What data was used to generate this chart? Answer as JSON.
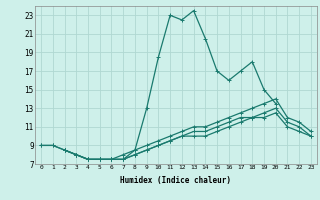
{
  "xlabel": "Humidex (Indice chaleur)",
  "ylabel": "",
  "xlim": [
    -0.5,
    23.5
  ],
  "ylim": [
    7,
    24
  ],
  "xtick_vals": [
    0,
    1,
    2,
    3,
    4,
    5,
    6,
    7,
    8,
    9,
    10,
    11,
    12,
    13,
    14,
    15,
    16,
    17,
    18,
    19,
    20,
    21,
    22,
    23
  ],
  "ytick_vals": [
    7,
    9,
    11,
    13,
    15,
    17,
    19,
    21,
    23
  ],
  "bg_color": "#cef0ea",
  "grid_color": "#b0d8d2",
  "line_color": "#1a7a6e",
  "lines": [
    {
      "x": [
        0,
        1,
        2,
        3,
        4,
        5,
        6,
        7,
        8,
        9,
        10,
        11,
        12,
        13,
        14,
        15,
        16,
        17,
        18,
        19,
        20
      ],
      "y": [
        9,
        9,
        8.5,
        8,
        7.5,
        7.5,
        7.5,
        7.5,
        8.5,
        13,
        18.5,
        23,
        22.5,
        23.5,
        20.5,
        17,
        16,
        17,
        18,
        15,
        13.5
      ]
    },
    {
      "x": [
        0,
        1,
        2,
        3,
        4,
        5,
        6,
        7,
        8,
        9,
        10,
        11,
        12,
        13,
        14,
        15,
        16,
        17,
        18,
        19,
        20,
        21,
        22,
        23
      ],
      "y": [
        9,
        9,
        8.5,
        8,
        7.5,
        7.5,
        7.5,
        8,
        8.5,
        9,
        9.5,
        10,
        10.5,
        11,
        11,
        11.5,
        12,
        12.5,
        13,
        13.5,
        14,
        12,
        11.5,
        10.5
      ]
    },
    {
      "x": [
        2,
        3,
        4,
        5,
        6,
        7,
        8,
        9,
        10,
        11,
        12,
        13,
        14,
        15,
        16,
        17,
        18,
        19,
        20,
        21,
        22,
        23
      ],
      "y": [
        8.5,
        8,
        7.5,
        7.5,
        7.5,
        7.5,
        8,
        8.5,
        9,
        9.5,
        10,
        10.5,
        10.5,
        11,
        11.5,
        12,
        12,
        12.5,
        13,
        11.5,
        11,
        10
      ]
    },
    {
      "x": [
        2,
        3,
        4,
        5,
        6,
        7,
        8,
        9,
        10,
        11,
        12,
        13,
        14,
        15,
        16,
        17,
        18,
        19,
        20,
        21,
        22,
        23
      ],
      "y": [
        8.5,
        8,
        7.5,
        7.5,
        7.5,
        7.5,
        8,
        8.5,
        9,
        9.5,
        10,
        10,
        10,
        10.5,
        11,
        11.5,
        12,
        12,
        12.5,
        11,
        10.5,
        10
      ]
    }
  ]
}
